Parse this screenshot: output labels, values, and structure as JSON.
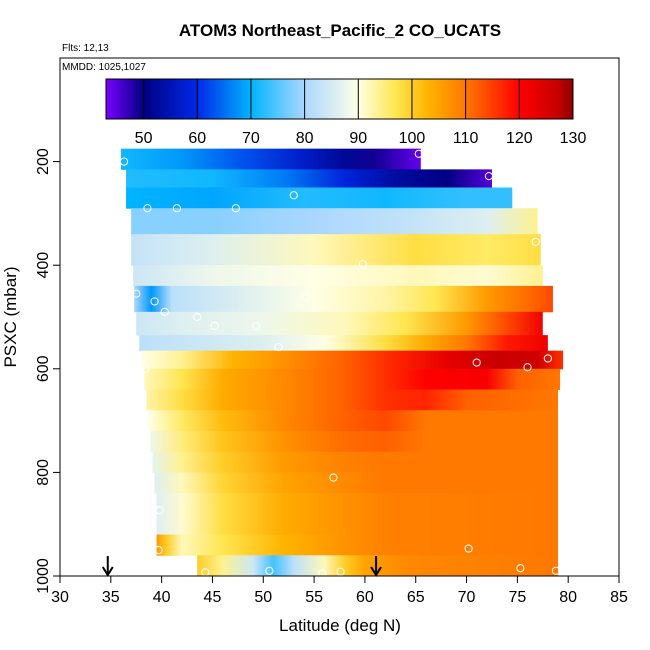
{
  "chart_data": {
    "type": "heatmap",
    "title": "ATOM3 Northeast_Pacific_2 CO_UCATS",
    "annotations": [
      "Flts: 12,13",
      "MMDD: 1025,1027"
    ],
    "xlabel": "Latitude (deg N)",
    "ylabel": "PSXC (mbar)",
    "xlim": [
      30,
      85
    ],
    "ylim": [
      1000,
      0
    ],
    "xticks": [
      "30",
      "35",
      "40",
      "45",
      "50",
      "55",
      "60",
      "65",
      "70",
      "75",
      "80",
      "85"
    ],
    "yticks": [
      "200",
      "400",
      "600",
      "800",
      "1000"
    ],
    "colorbar": {
      "range": [
        43,
        130
      ],
      "ticks": [
        "50",
        "60",
        "70",
        "80",
        "90",
        "100",
        "110",
        "120",
        "130"
      ]
    },
    "arrows_lat": [
      34.7,
      61.1
    ],
    "rows": [
      {
        "p0": 175,
        "p1": 215,
        "lat0": 36,
        "lat1": 65.5,
        "stops": [
          [
            36,
            71
          ],
          [
            42,
            68
          ],
          [
            48,
            63
          ],
          [
            54,
            57
          ],
          [
            58,
            52
          ],
          [
            61,
            49
          ],
          [
            65.5,
            44
          ]
        ]
      },
      {
        "p0": 215,
        "p1": 250,
        "lat0": 36.5,
        "lat1": 72.5,
        "stops": [
          [
            36.5,
            72
          ],
          [
            45,
            71
          ],
          [
            52,
            66
          ],
          [
            58,
            59
          ],
          [
            63,
            53
          ],
          [
            68,
            50
          ],
          [
            72.5,
            45
          ]
        ]
      },
      {
        "p0": 250,
        "p1": 290,
        "lat0": 36.5,
        "lat1": 74.5,
        "stops": [
          [
            36.5,
            70
          ],
          [
            45,
            69
          ],
          [
            54,
            72
          ],
          [
            62,
            71
          ],
          [
            70,
            73
          ],
          [
            74.5,
            73
          ]
        ]
      },
      {
        "p0": 290,
        "p1": 340,
        "lat0": 37,
        "lat1": 77,
        "stops": [
          [
            37,
            78
          ],
          [
            45,
            78
          ],
          [
            55,
            80
          ],
          [
            65,
            83
          ],
          [
            72,
            86
          ],
          [
            77,
            94
          ]
        ]
      },
      {
        "p0": 340,
        "p1": 400,
        "lat0": 37,
        "lat1": 77.3,
        "stops": [
          [
            37,
            83
          ],
          [
            45,
            86
          ],
          [
            55,
            92
          ],
          [
            65,
            98
          ],
          [
            72,
            96
          ],
          [
            77.3,
            98
          ]
        ]
      },
      {
        "p0": 400,
        "p1": 440,
        "lat0": 37.2,
        "lat1": 77.5,
        "stops": [
          [
            37.2,
            84
          ],
          [
            45,
            88
          ],
          [
            55,
            90
          ],
          [
            65,
            92
          ],
          [
            72,
            91
          ],
          [
            77.5,
            94
          ]
        ]
      },
      {
        "p0": 440,
        "p1": 490,
        "lat0": 37.3,
        "lat1": 78.5,
        "stops": [
          [
            37.3,
            80
          ],
          [
            39,
            68
          ],
          [
            41,
            82
          ],
          [
            48,
            86
          ],
          [
            55,
            90
          ],
          [
            62,
            93
          ],
          [
            67,
            97
          ],
          [
            72,
            106
          ],
          [
            76,
            111
          ],
          [
            78.5,
            114
          ]
        ]
      },
      {
        "p0": 490,
        "p1": 535,
        "lat0": 37.5,
        "lat1": 77.5,
        "stops": [
          [
            37.5,
            84
          ],
          [
            42,
            86
          ],
          [
            50,
            88
          ],
          [
            58,
            92
          ],
          [
            64,
            97
          ],
          [
            70,
            106
          ],
          [
            74,
            114
          ],
          [
            77.5,
            122
          ]
        ]
      },
      {
        "p0": 535,
        "p1": 565,
        "lat0": 37.8,
        "lat1": 78,
        "stops": [
          [
            37.8,
            82
          ],
          [
            44,
            84
          ],
          [
            50,
            86
          ],
          [
            56,
            90
          ],
          [
            62,
            98
          ],
          [
            66,
            104
          ],
          [
            70,
            110
          ],
          [
            74,
            118
          ],
          [
            78,
            122
          ]
        ]
      },
      {
        "p0": 565,
        "p1": 600,
        "lat0": 38,
        "lat1": 79.5,
        "stops": [
          [
            38,
            90
          ],
          [
            42,
            94
          ],
          [
            47,
            103
          ],
          [
            53,
            108
          ],
          [
            58,
            112
          ],
          [
            63,
            117
          ],
          [
            68,
            123
          ],
          [
            73,
            127
          ],
          [
            77,
            126
          ],
          [
            79.5,
            116
          ]
        ]
      },
      {
        "p0": 600,
        "p1": 640,
        "lat0": 38.3,
        "lat1": 79.2,
        "stops": [
          [
            38.3,
            92
          ],
          [
            42,
            97
          ],
          [
            46,
            104
          ],
          [
            52,
            108
          ],
          [
            58,
            112
          ],
          [
            62,
            116
          ],
          [
            66,
            120
          ],
          [
            72,
            121
          ],
          [
            75,
            112
          ],
          [
            79.2,
            110
          ]
        ]
      },
      {
        "p0": 640,
        "p1": 680,
        "lat0": 38.5,
        "lat1": 79,
        "stops": [
          [
            38.5,
            93
          ],
          [
            42,
            98
          ],
          [
            46,
            104
          ],
          [
            52,
            108
          ],
          [
            58,
            112
          ],
          [
            62,
            116
          ],
          [
            66,
            117
          ],
          [
            70,
            112
          ],
          [
            79,
            110
          ]
        ]
      },
      {
        "p0": 680,
        "p1": 720,
        "lat0": 38.7,
        "lat1": 79,
        "stops": [
          [
            38.7,
            90
          ],
          [
            42,
            96
          ],
          [
            46,
            102
          ],
          [
            52,
            108
          ],
          [
            58,
            112
          ],
          [
            62,
            114
          ],
          [
            66,
            110
          ],
          [
            79,
            110
          ]
        ]
      },
      {
        "p0": 720,
        "p1": 760,
        "lat0": 38.9,
        "lat1": 79,
        "stops": [
          [
            38.9,
            88
          ],
          [
            42,
            95
          ],
          [
            46,
            101
          ],
          [
            52,
            107
          ],
          [
            58,
            111
          ],
          [
            62,
            112
          ],
          [
            66,
            110
          ],
          [
            79,
            110
          ]
        ]
      },
      {
        "p0": 760,
        "p1": 800,
        "lat0": 39.1,
        "lat1": 79,
        "stops": [
          [
            39.1,
            87
          ],
          [
            42,
            94
          ],
          [
            46,
            100
          ],
          [
            52,
            106
          ],
          [
            58,
            109
          ],
          [
            62,
            110
          ],
          [
            79,
            110
          ]
        ]
      },
      {
        "p0": 800,
        "p1": 840,
        "lat0": 39.3,
        "lat1": 79,
        "stops": [
          [
            39.3,
            86
          ],
          [
            42,
            92
          ],
          [
            46,
            99
          ],
          [
            52,
            105
          ],
          [
            58,
            108
          ],
          [
            62,
            110
          ],
          [
            79,
            110
          ]
        ]
      },
      {
        "p0": 840,
        "p1": 880,
        "lat0": 39.5,
        "lat1": 79,
        "stops": [
          [
            39.5,
            86
          ],
          [
            42,
            91
          ],
          [
            46,
            98
          ],
          [
            52,
            104
          ],
          [
            58,
            107
          ],
          [
            62,
            109
          ],
          [
            79,
            110
          ]
        ]
      },
      {
        "p0": 880,
        "p1": 920,
        "lat0": 39.5,
        "lat1": 79,
        "stops": [
          [
            39.5,
            86
          ],
          [
            42,
            91
          ],
          [
            46,
            98
          ],
          [
            52,
            104
          ],
          [
            58,
            107
          ],
          [
            62,
            109
          ],
          [
            79,
            110
          ]
        ]
      },
      {
        "p0": 920,
        "p1": 960,
        "lat0": 39.5,
        "lat1": 79,
        "stops": [
          [
            39.5,
            106
          ],
          [
            40.5,
            100
          ],
          [
            42,
            92
          ],
          [
            46,
            97
          ],
          [
            52,
            103
          ],
          [
            58,
            107
          ],
          [
            62,
            109
          ],
          [
            79,
            110
          ]
        ]
      },
      {
        "p0": 960,
        "p1": 1000,
        "lat0": 43.5,
        "lat1": 79,
        "stops": [
          [
            43.5,
            100
          ],
          [
            46,
            94
          ],
          [
            49,
            84
          ],
          [
            51,
            74
          ],
          [
            53,
            82
          ],
          [
            56,
            92
          ],
          [
            58,
            100
          ],
          [
            60,
            105
          ],
          [
            64,
            108
          ],
          [
            79,
            110
          ]
        ]
      }
    ],
    "points": [
      {
        "lat": 36.3,
        "p": 200
      },
      {
        "lat": 65.3,
        "p": 185
      },
      {
        "lat": 72.2,
        "p": 228
      },
      {
        "lat": 38.6,
        "p": 290
      },
      {
        "lat": 41.5,
        "p": 290
      },
      {
        "lat": 47.3,
        "p": 290
      },
      {
        "lat": 53,
        "p": 265
      },
      {
        "lat": 76.8,
        "p": 355
      },
      {
        "lat": 59.8,
        "p": 398
      },
      {
        "lat": 37.5,
        "p": 455
      },
      {
        "lat": 39.3,
        "p": 470
      },
      {
        "lat": 40.3,
        "p": 490
      },
      {
        "lat": 43.5,
        "p": 500
      },
      {
        "lat": 45.2,
        "p": 517
      },
      {
        "lat": 49.3,
        "p": 518
      },
      {
        "lat": 54.2,
        "p": 462
      },
      {
        "lat": 51.5,
        "p": 558
      },
      {
        "lat": 38.4,
        "p": 600
      },
      {
        "lat": 71,
        "p": 588
      },
      {
        "lat": 76,
        "p": 597
      },
      {
        "lat": 78,
        "p": 580
      },
      {
        "lat": 56.9,
        "p": 810
      },
      {
        "lat": 39.8,
        "p": 873
      },
      {
        "lat": 39.7,
        "p": 950
      },
      {
        "lat": 70.2,
        "p": 947
      },
      {
        "lat": 44.3,
        "p": 993
      },
      {
        "lat": 50.6,
        "p": 990
      },
      {
        "lat": 55.8,
        "p": 995
      },
      {
        "lat": 57.6,
        "p": 992
      },
      {
        "lat": 75.3,
        "p": 985
      },
      {
        "lat": 78.8,
        "p": 990
      }
    ]
  }
}
